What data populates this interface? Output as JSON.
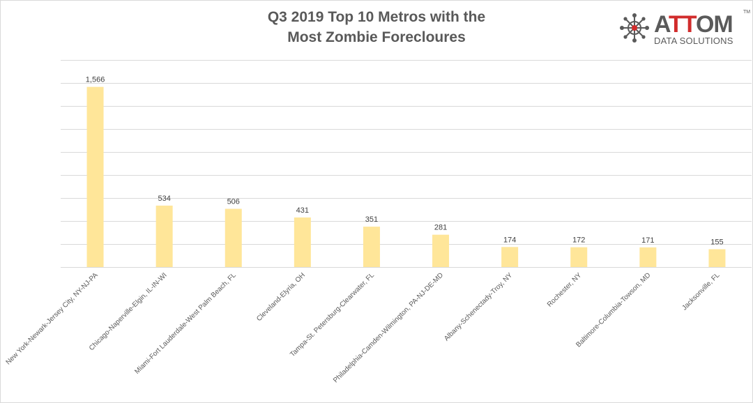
{
  "chart_data": {
    "type": "bar",
    "title_line1": "Q3 2019 Top 10 Metros with the",
    "title_line2": "Most Zombie Forecloures",
    "categories": [
      "New York-Newark-Jersey City, NY-NJ-PA",
      "Chicago-Naperville-Elgin, IL-IN-WI",
      "Miami-Fort Lauderdale-West Palm Beach, FL",
      "Cleveland-Elyria, OH",
      "Tampa-St. Petersburg-Clearwater, FL",
      "Philadelphia-Camden-Wilmington, PA-NJ-DE-MD",
      "Albany-Schenectady-Troy, NY",
      "Rochester, NY",
      "Baltimore-Columbia-Towson, MD",
      "Jacksonville, FL"
    ],
    "values": [
      1566,
      534,
      506,
      431,
      351,
      281,
      174,
      172,
      171,
      155
    ],
    "data_labels": [
      "1,566",
      "534",
      "506",
      "431",
      "351",
      "281",
      "174",
      "172",
      "171",
      "155"
    ],
    "ylim": [
      0,
      1800
    ],
    "gridline_step": 200,
    "grid": true,
    "xlabel": "",
    "ylabel": "",
    "bar_color": "#ffe699",
    "grid_color": "#d9d9d9"
  },
  "logo": {
    "brand_prefix": "A",
    "brand_accent": "TT",
    "brand_suffix": "OM",
    "tagline": "DATA SOLUTIONS",
    "trademark": "TM",
    "accent_color": "#d12c2c"
  }
}
